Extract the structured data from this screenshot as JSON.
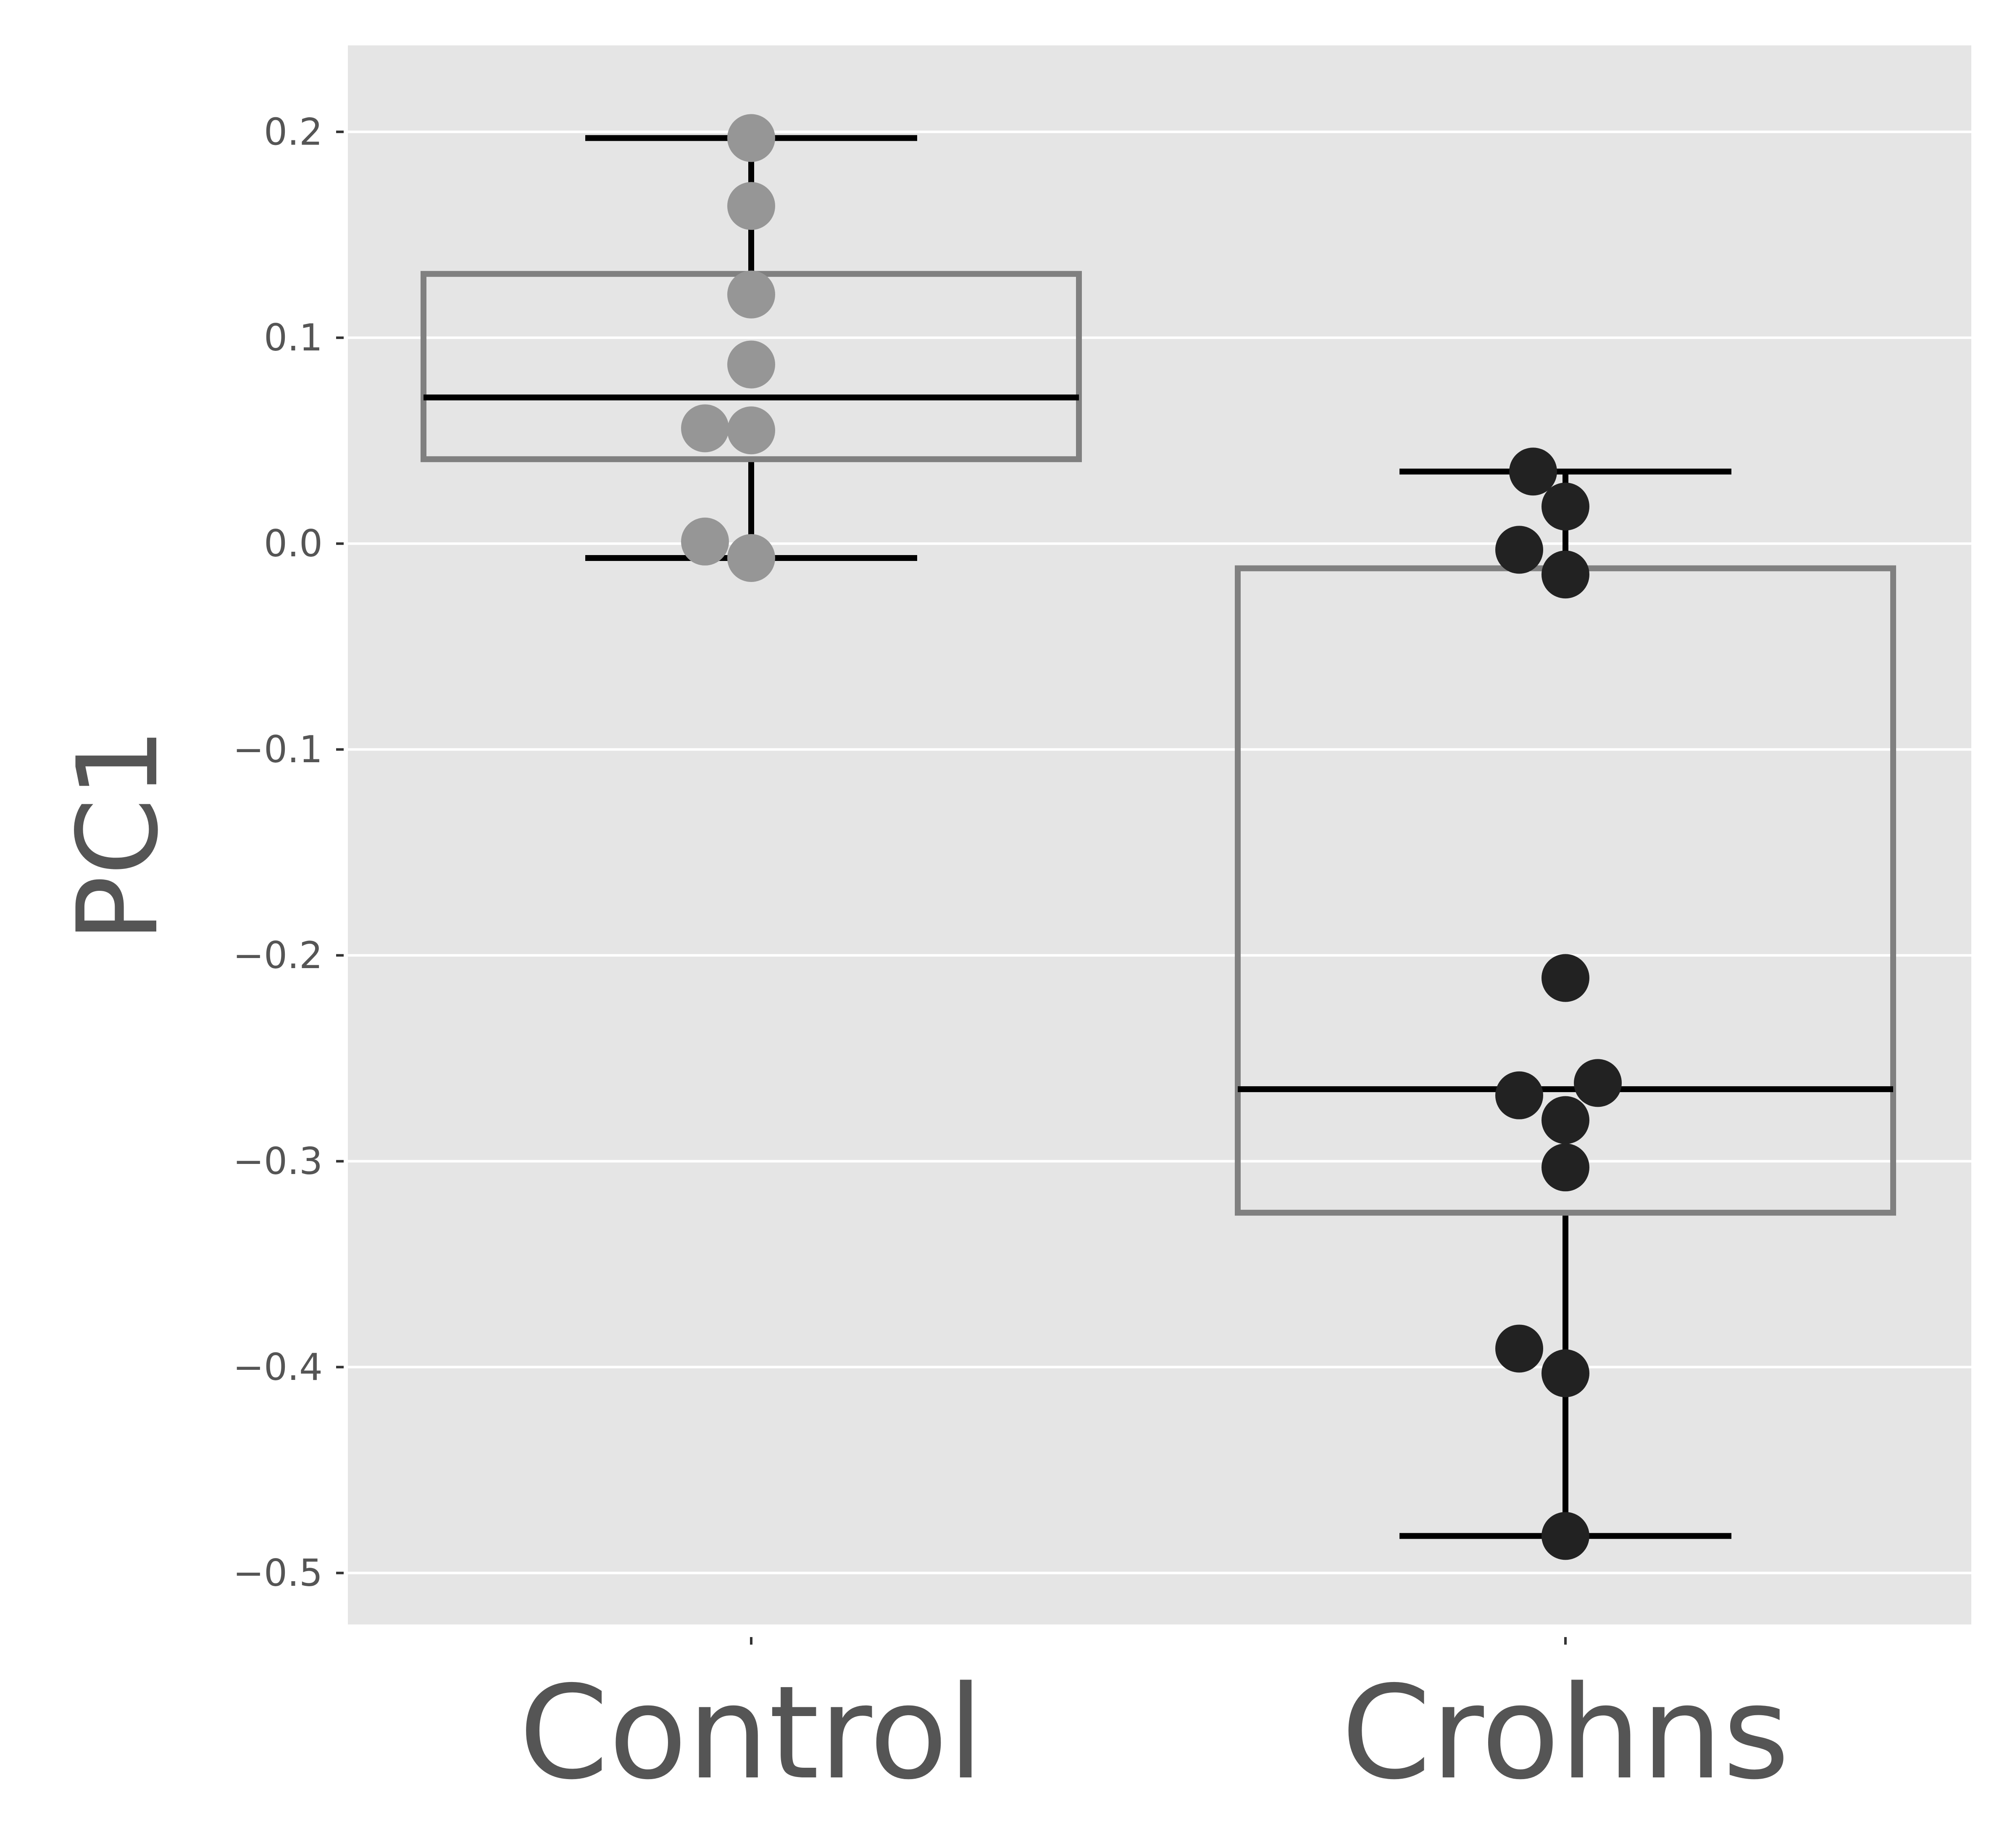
{
  "colors": {
    "panel_background": "#e5e5e5",
    "gridline": "#ffffff",
    "box_edge": "#808080",
    "whisker": "#000000",
    "tick_text": "#555555",
    "control_points": "#969696",
    "crohns_points": "#222222"
  },
  "chart_data": {
    "type": "box",
    "title": "",
    "xlabel": "",
    "ylabel": "PC1",
    "ylim": [
      -0.525,
      0.242
    ],
    "yticks": [
      0.2,
      0.1,
      0.0,
      -0.1,
      -0.2,
      -0.3,
      -0.4,
      -0.5
    ],
    "ytick_labels": [
      "0.2",
      "0.1",
      "0.0",
      "−0.1",
      "−0.2",
      "−0.3",
      "−0.4",
      "−0.5"
    ],
    "categories": [
      "Control",
      "Crohns"
    ],
    "grid": true,
    "legend": "none",
    "boxes": [
      {
        "category": "Control",
        "whisker_low": -0.007,
        "q1": 0.041,
        "median": 0.071,
        "q3": 0.131,
        "whisker_high": 0.197
      },
      {
        "category": "Crohns",
        "whisker_low": -0.482,
        "q1": -0.325,
        "median": -0.265,
        "q3": -0.012,
        "whisker_high": 0.035
      }
    ],
    "series": [
      {
        "category": "Control",
        "points": [
          {
            "y": 0.197,
            "offset": 0
          },
          {
            "y": 0.164,
            "offset": 0
          },
          {
            "y": 0.121,
            "offset": 0
          },
          {
            "y": 0.087,
            "offset": 0
          },
          {
            "y": 0.056,
            "offset": -1
          },
          {
            "y": 0.055,
            "offset": 0
          },
          {
            "y": 0.001,
            "offset": -1
          },
          {
            "y": -0.007,
            "offset": 0
          }
        ]
      },
      {
        "category": "Crohns",
        "points": [
          {
            "y": 0.035,
            "offset": -0.7
          },
          {
            "y": 0.018,
            "offset": 0
          },
          {
            "y": -0.003,
            "offset": -1
          },
          {
            "y": -0.015,
            "offset": 0
          },
          {
            "y": -0.211,
            "offset": 0
          },
          {
            "y": -0.262,
            "offset": 0.7
          },
          {
            "y": -0.268,
            "offset": -1
          },
          {
            "y": -0.28,
            "offset": 0
          },
          {
            "y": -0.303,
            "offset": 0
          },
          {
            "y": -0.391,
            "offset": -1
          },
          {
            "y": -0.403,
            "offset": 0
          },
          {
            "y": -0.482,
            "offset": 0
          }
        ]
      }
    ]
  }
}
